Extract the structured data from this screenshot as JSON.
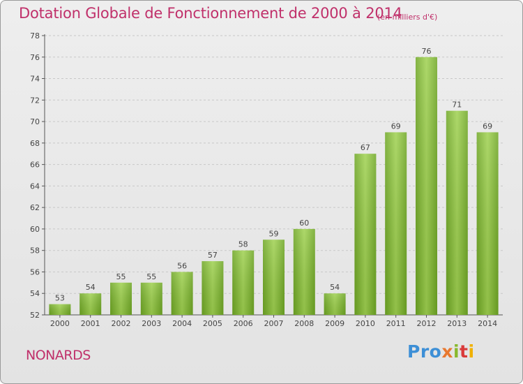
{
  "chart_data": {
    "type": "bar",
    "title": "Dotation Globale de Fonctionnement de 2000 à 2014",
    "subtitle": "(en milliers d'€)",
    "categories": [
      "2000",
      "2001",
      "2002",
      "2003",
      "2004",
      "2005",
      "2006",
      "2007",
      "2008",
      "2009",
      "2010",
      "2011",
      "2012",
      "2013",
      "2014"
    ],
    "values": [
      53,
      54,
      55,
      55,
      56,
      57,
      58,
      59,
      60,
      54,
      67,
      69,
      76,
      71,
      69
    ],
    "ylim": [
      52,
      78
    ],
    "yticks": [
      "52",
      "54",
      "56",
      "58",
      "60",
      "62",
      "64",
      "66",
      "68",
      "70",
      "72",
      "74",
      "76",
      "78"
    ],
    "grid": true,
    "bar_color": "#7cb82f"
  },
  "commune": "NONARDS",
  "logo": {
    "text": "Proxiti",
    "parts": [
      "Pro",
      "x",
      "i",
      "t",
      "i"
    ]
  }
}
